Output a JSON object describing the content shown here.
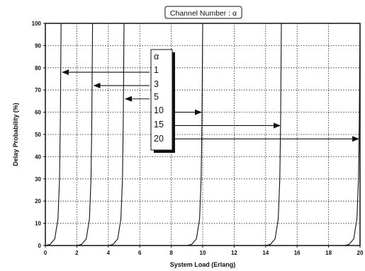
{
  "chart_data": {
    "type": "line",
    "title": "Channel Number : α",
    "xlabel": "System Load (Erlang)",
    "ylabel": "Delay Probability (%)",
    "xlim": [
      0,
      20
    ],
    "ylim": [
      0,
      100
    ],
    "x_ticks": [
      0,
      2,
      4,
      6,
      8,
      10,
      12,
      14,
      16,
      18,
      20
    ],
    "y_ticks": [
      0,
      10,
      20,
      30,
      40,
      50,
      60,
      70,
      80,
      90,
      100
    ],
    "grid": true,
    "legend_header": "α",
    "series": [
      {
        "name": "1",
        "x": [
          0.0,
          0.3,
          0.6,
          0.8,
          0.9,
          0.95,
          1.0
        ],
        "y": [
          0,
          0.5,
          3,
          12,
          30,
          55,
          100
        ]
      },
      {
        "name": "3",
        "x": [
          2.0,
          2.3,
          2.6,
          2.8,
          2.9,
          2.95,
          3.0
        ],
        "y": [
          0,
          0.5,
          3,
          12,
          30,
          55,
          100
        ]
      },
      {
        "name": "5",
        "x": [
          4.0,
          4.3,
          4.6,
          4.8,
          4.9,
          4.95,
          5.0
        ],
        "y": [
          0,
          0.5,
          3,
          12,
          30,
          55,
          100
        ]
      },
      {
        "name": "10",
        "x": [
          9.0,
          9.3,
          9.6,
          9.8,
          9.9,
          9.95,
          10.0
        ],
        "y": [
          0,
          0.5,
          3,
          12,
          30,
          55,
          100
        ]
      },
      {
        "name": "15",
        "x": [
          14.0,
          14.3,
          14.6,
          14.8,
          14.9,
          14.95,
          15.0
        ],
        "y": [
          0,
          0.5,
          3,
          12,
          30,
          55,
          100
        ]
      },
      {
        "name": "20",
        "x": [
          19.0,
          19.3,
          19.6,
          19.8,
          19.9,
          19.95,
          20.0
        ],
        "y": [
          0,
          0.5,
          3,
          12,
          30,
          55,
          100
        ]
      }
    ],
    "arrows": [
      {
        "label": "1",
        "to_x": 1.0,
        "y": 78
      },
      {
        "label": "3",
        "to_x": 3.0,
        "y": 72
      },
      {
        "label": "5",
        "to_x": 5.0,
        "y": 66
      },
      {
        "label": "10",
        "to_x": 10.0,
        "y": 60
      },
      {
        "label": "15",
        "to_x": 15.0,
        "y": 54
      },
      {
        "label": "20",
        "to_x": 20.0,
        "y": 48
      }
    ]
  }
}
